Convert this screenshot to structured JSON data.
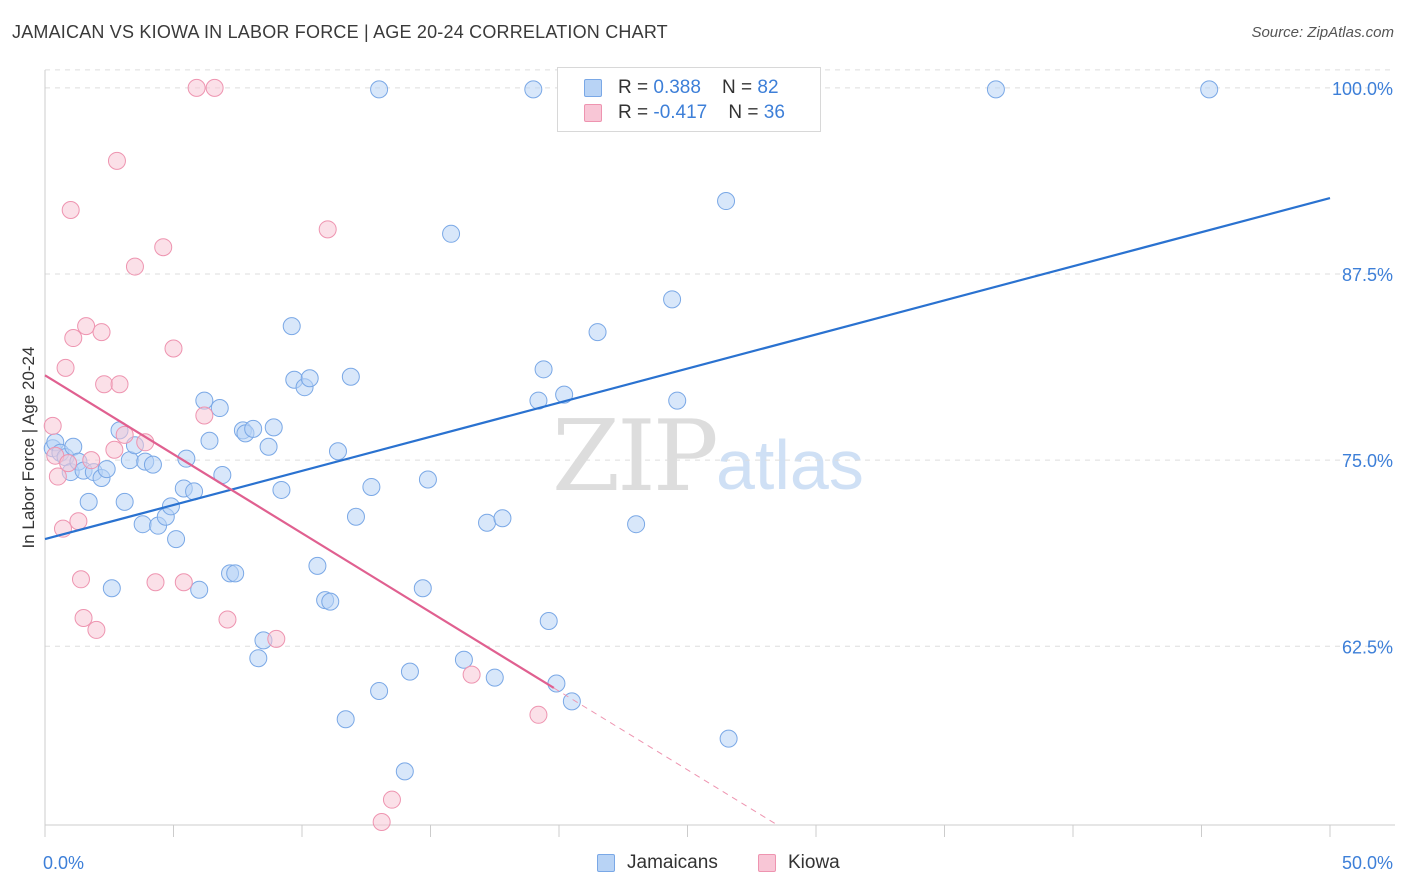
{
  "header": {
    "title": "JAMAICAN VS KIOWA IN LABOR FORCE | AGE 20-24 CORRELATION CHART",
    "source": "Source: ZipAtlas.com"
  },
  "watermark": {
    "zip": "ZIP",
    "atlas": "atlas"
  },
  "legend_top": {
    "rows": [
      {
        "r_label": "R = ",
        "r_value": "0.388",
        "n_label": "N = ",
        "n_value": "82"
      },
      {
        "r_label": "R = ",
        "r_value": "-0.417",
        "n_label": "N = ",
        "n_value": "36"
      }
    ]
  },
  "colors": {
    "blue_fill": "#b8d3f5",
    "blue_stroke": "#7aa8e6",
    "blue_line": "#2a72d0",
    "pink_fill": "#f8c6d6",
    "pink_stroke": "#ee94b0",
    "pink_line": "#e06090",
    "tick_label": "#3d7fd8",
    "grid": "#dddddd"
  },
  "chart_data": {
    "type": "scatter",
    "title": "JAMAICAN VS KIOWA IN LABOR FORCE | AGE 20-24 CORRELATION CHART",
    "xlabel": "",
    "ylabel": "In Labor Force | Age 20-24",
    "xlim": [
      0,
      50
    ],
    "ylim": [
      50.5,
      101.2
    ],
    "x_tick_labels": [
      "0.0%",
      "50.0%"
    ],
    "y_ticks": [
      62.5,
      75.0,
      87.5,
      100.0
    ],
    "y_tick_labels": [
      "62.5%",
      "75.0%",
      "87.5%",
      "100.0%"
    ],
    "grid": true,
    "legend_position": "bottom-center",
    "series": [
      {
        "name": "Jamaicans",
        "color": "#b8d3f5",
        "points": [
          [
            0.3,
            75.8
          ],
          [
            0.4,
            76.2
          ],
          [
            0.6,
            75.5
          ],
          [
            0.8,
            75.2
          ],
          [
            1.0,
            74.2
          ],
          [
            1.1,
            75.9
          ],
          [
            1.3,
            74.9
          ],
          [
            1.5,
            74.3
          ],
          [
            1.7,
            72.2
          ],
          [
            1.9,
            74.2
          ],
          [
            2.2,
            73.8
          ],
          [
            2.4,
            74.4
          ],
          [
            2.6,
            66.4
          ],
          [
            2.9,
            77.0
          ],
          [
            3.1,
            72.2
          ],
          [
            3.3,
            75.0
          ],
          [
            3.5,
            76.0
          ],
          [
            3.8,
            70.7
          ],
          [
            3.9,
            74.9
          ],
          [
            4.2,
            74.7
          ],
          [
            4.4,
            70.6
          ],
          [
            4.7,
            71.2
          ],
          [
            4.9,
            71.9
          ],
          [
            5.1,
            69.7
          ],
          [
            5.4,
            73.1
          ],
          [
            5.5,
            75.1
          ],
          [
            5.8,
            72.9
          ],
          [
            6.0,
            66.3
          ],
          [
            6.2,
            79.0
          ],
          [
            6.4,
            76.3
          ],
          [
            6.8,
            78.5
          ],
          [
            6.9,
            74.0
          ],
          [
            7.2,
            67.4
          ],
          [
            7.4,
            67.4
          ],
          [
            7.7,
            77.0
          ],
          [
            7.8,
            76.8
          ],
          [
            8.1,
            77.1
          ],
          [
            8.3,
            61.7
          ],
          [
            8.5,
            62.9
          ],
          [
            8.7,
            75.9
          ],
          [
            8.9,
            77.2
          ],
          [
            9.2,
            73.0
          ],
          [
            9.6,
            84.0
          ],
          [
            9.7,
            80.4
          ],
          [
            10.1,
            79.9
          ],
          [
            10.3,
            80.5
          ],
          [
            10.6,
            67.9
          ],
          [
            10.9,
            65.6
          ],
          [
            11.1,
            65.5
          ],
          [
            11.4,
            75.6
          ],
          [
            11.7,
            57.6
          ],
          [
            11.9,
            80.6
          ],
          [
            12.1,
            71.2
          ],
          [
            12.7,
            73.2
          ],
          [
            13.0,
            59.5
          ],
          [
            13.0,
            99.9
          ],
          [
            14.0,
            54.1
          ],
          [
            14.2,
            60.8
          ],
          [
            14.7,
            66.4
          ],
          [
            14.9,
            73.7
          ],
          [
            15.8,
            90.2
          ],
          [
            16.3,
            61.6
          ],
          [
            17.2,
            70.8
          ],
          [
            17.5,
            60.4
          ],
          [
            17.8,
            71.1
          ],
          [
            19.0,
            99.9
          ],
          [
            19.2,
            79.0
          ],
          [
            19.4,
            81.1
          ],
          [
            19.6,
            64.2
          ],
          [
            19.9,
            60.0
          ],
          [
            20.2,
            79.4
          ],
          [
            20.5,
            58.8
          ],
          [
            21.5,
            83.6
          ],
          [
            23.0,
            70.7
          ],
          [
            23.9,
            99.9
          ],
          [
            24.4,
            85.8
          ],
          [
            24.6,
            79.0
          ],
          [
            26.5,
            92.4
          ],
          [
            26.6,
            56.3
          ],
          [
            37.0,
            99.9
          ],
          [
            45.3,
            99.9
          ],
          [
            27.4,
            99.9
          ]
        ],
        "trend": [
          [
            0,
            69.7
          ],
          [
            50,
            92.6
          ]
        ]
      },
      {
        "name": "Kiowa",
        "color": "#f8c6d6",
        "points": [
          [
            0.3,
            77.3
          ],
          [
            0.5,
            73.9
          ],
          [
            0.7,
            70.4
          ],
          [
            0.8,
            81.2
          ],
          [
            1.0,
            91.8
          ],
          [
            1.1,
            83.2
          ],
          [
            1.3,
            70.9
          ],
          [
            1.4,
            67.0
          ],
          [
            1.5,
            64.4
          ],
          [
            1.6,
            84.0
          ],
          [
            1.8,
            75.0
          ],
          [
            2.0,
            63.6
          ],
          [
            2.2,
            83.6
          ],
          [
            2.3,
            80.1
          ],
          [
            2.8,
            95.1
          ],
          [
            2.9,
            80.1
          ],
          [
            3.1,
            76.7
          ],
          [
            3.5,
            88.0
          ],
          [
            3.9,
            76.2
          ],
          [
            4.3,
            66.8
          ],
          [
            4.6,
            89.3
          ],
          [
            5.0,
            82.5
          ],
          [
            5.4,
            66.8
          ],
          [
            5.9,
            100.0
          ],
          [
            6.2,
            78.0
          ],
          [
            6.6,
            100.0
          ],
          [
            7.1,
            64.3
          ],
          [
            9.0,
            63.0
          ],
          [
            11.0,
            90.5
          ],
          [
            13.1,
            50.7
          ],
          [
            13.5,
            52.2
          ],
          [
            16.6,
            60.6
          ],
          [
            19.2,
            57.9
          ],
          [
            0.4,
            75.3
          ],
          [
            0.9,
            74.8
          ],
          [
            2.7,
            75.7
          ]
        ],
        "trend": [
          [
            0,
            80.7
          ],
          [
            19.8,
            59.7
          ]
        ],
        "trend_dashed": [
          [
            19.8,
            59.7
          ],
          [
            28.5,
            50.5
          ]
        ]
      }
    ]
  },
  "bottom_legend": {
    "items": [
      "Jamaicans",
      "Kiowa"
    ]
  }
}
